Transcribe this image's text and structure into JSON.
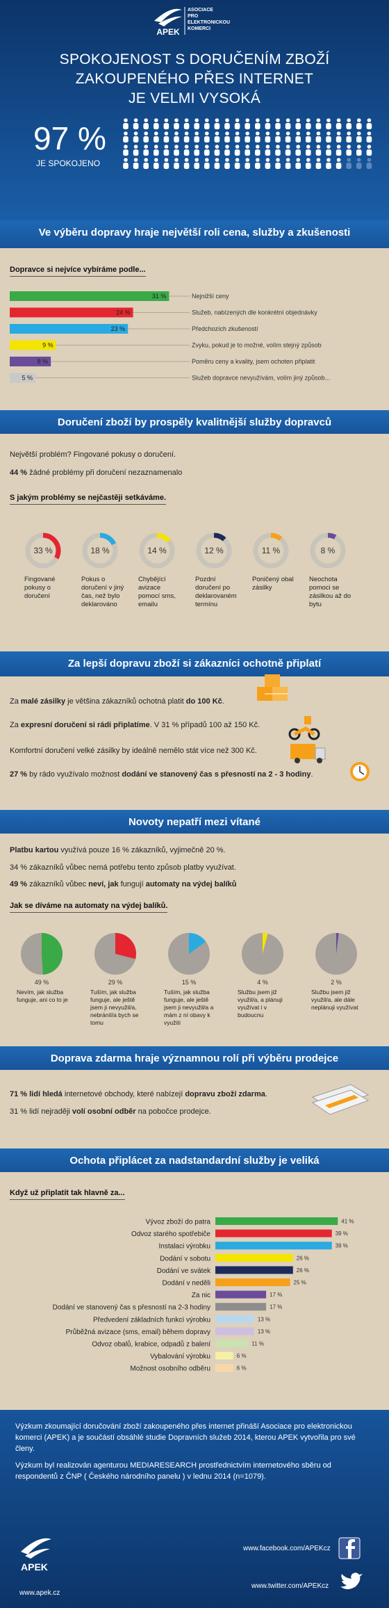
{
  "header": {
    "logo": "APEK",
    "org": [
      "ASOCIACE",
      "PRO",
      "ELEKTRONICKOU",
      "KOMERCI"
    ],
    "title": [
      "SPOKOJENOST S DORUČENÍM ZBOŽÍ",
      "ZAKOUPENÉHO PŘES INTERNET",
      "JE VELMI VYSOKÁ"
    ],
    "satisfied": {
      "value": 97,
      "label": "97 %",
      "caption": "JE SPOKOJENO"
    }
  },
  "carrier": {
    "heading": "Ve výběru dopravy hraje největší roli cena, služby a zkušenosti",
    "chart": {
      "type": "bar",
      "title": "Dopravce si nejvíce vybíráme podle...",
      "categories": [
        "Nejnižší ceny",
        "Služeb, nabízených dle konkrétní objednávky",
        "Předchozích zkušeností",
        "Zvyku, pokud je to možné, volím stejný způsob",
        "Poměru ceny a kvality, jsem ochoten připlatit",
        "Služeb dopravce nevyužívám, volím jiný způsob..."
      ],
      "values": [
        31,
        24,
        23,
        9,
        8,
        5
      ],
      "value_labels": [
        "31 %",
        "24 %",
        "23 %",
        "9 %",
        "8 %",
        "5 %"
      ],
      "colors": [
        "#3aaa47",
        "#e3262f",
        "#29aae1",
        "#f3e500",
        "#6b4c9a",
        "#c9c9c9"
      ],
      "xlim": [
        0,
        35
      ]
    }
  },
  "problems": {
    "heading": "Doručení zboží by prospěly kvalitnější služby dopravců",
    "lines": [
      [
        "Největší problém? Fingované pokusy o doručení."
      ],
      [
        "44 %",
        " žádné problémy při doručení nezaznamenalo"
      ]
    ],
    "chart": {
      "type": "donut",
      "title": "S jakým problémy se nejčastěji setkáváme.",
      "categories": [
        "Fingované pokusy o doručení",
        "Pokus o doručení v jiný čas, než bylo deklarováno",
        "Chybějící avizace pomocí sms, emailu",
        "Pozdní doručení po deklarovaném termínu",
        "Poničený obal zásilky",
        "Neochota pomoci se zásilkou až do bytu"
      ],
      "values": [
        33,
        18,
        14,
        12,
        11,
        8
      ],
      "value_labels": [
        "33 %",
        "18 %",
        "14 %",
        "12 %",
        "11 %",
        "8 %"
      ],
      "colors": [
        "#e3262f",
        "#29aae1",
        "#f3e500",
        "#1e2a5a",
        "#f6a01a",
        "#6b4c9a"
      ]
    }
  },
  "pay": {
    "heading": "Za lepší dopravu zboží si zákazníci ochotně připlatí",
    "lines": [
      [
        "Za ",
        "malé zásilky",
        " je většina zákazníků ochotná platit ",
        "do 100 Kč",
        "."
      ],
      [
        "Za ",
        "expresní doručení si rádi připlatíme",
        ". V 31 % případů 100 až 150 Kč."
      ],
      [
        "Komfortní doručení velké zásilky by ideálně nemělo stát více než 300 Kč."
      ],
      [
        "27 %",
        " by rádo využívalo možnost ",
        "dodání ve stanovený čas s přesností na 2 - 3 hodiny",
        "."
      ]
    ]
  },
  "novelties": {
    "heading": "Novoty nepatří mezi vítané",
    "lines": [
      [
        "Platbu kartou",
        " využívá pouze 16 % zákazníků, vyjimečně 20 %."
      ],
      [
        "34 % zákazníků vůbec nemá potřebu tento způsob platby využívat."
      ],
      [
        "49 %",
        " zákazníků vůbec ",
        "neví, jak",
        " fungují ",
        "automaty na výdej balíků"
      ]
    ],
    "chart": {
      "type": "pie",
      "title": "Jak se díváme na automaty na výdej balíků.",
      "categories": [
        "Nevím, jak služba funguje, ani co to je",
        "Tuším, jak služba funguje, ale ještě jsem ji nevyužil/a, nebráníl/a bych se tomu",
        "Tuším, jak služba funguje, ale ještě jsem ji nevyužil/a a mám z ní obavy k využití",
        "Službu jsem již využil/a, a plánuji využívat i v budoucnu",
        "Službu jsem již využil/a, ale dále neplánuji využívat"
      ],
      "values": [
        49,
        29,
        15,
        4,
        2
      ],
      "value_labels": [
        "49 %",
        "29 %",
        "15 %",
        "4 %",
        "2 %"
      ],
      "colors": [
        "#3aaa47",
        "#e3262f",
        "#29aae1",
        "#f3e500",
        "#6b4c9a"
      ]
    }
  },
  "free": {
    "heading": "Doprava zdarma hraje významnou rolí při výběru prodejce",
    "lines": [
      [
        "71 % lidí hledá",
        " internetové obchody, které nabízejí ",
        "dopravu zboží zdarma",
        "."
      ],
      [
        "31 % lidí  nejraději ",
        "volí osobní odběr",
        " na pobočce prodejce."
      ]
    ]
  },
  "extra": {
    "heading": "Ochota připlácet za nadstandardní služby je veliká",
    "chart": {
      "type": "bar",
      "title": "Když už připlatit tak hlavně za...",
      "categories": [
        "Vývoz zboží do patra",
        "Odvoz starého spotřebiče",
        "Instalaci výrobku",
        "Dodání v sobotu",
        "Dodání ve svátek",
        "Dodání v neděli",
        "Za nic",
        "Dodání ve stanovený čas s přesností na 2-3 hodiny",
        "Předvedení základních funkcí výrobku",
        "Průběžná avizace (sms, email) během dopravy",
        "Odvoz obalů, krabice, odpadů z balení",
        "Vybalování výrobku",
        "Možnost osobního odběru"
      ],
      "values": [
        41,
        39,
        39,
        26,
        26,
        25,
        17,
        17,
        13,
        13,
        11,
        6,
        6
      ],
      "value_labels": [
        "41 %",
        "39 %",
        "39 %",
        "26 %",
        "26 %",
        "25 %",
        "17 %",
        "17 %",
        "13 %",
        "13 %",
        "11 %",
        "6 %",
        "6 %"
      ],
      "colors": [
        "#3aaa47",
        "#e3262f",
        "#29aae1",
        "#f3e500",
        "#1e2a5a",
        "#f6a01a",
        "#6b4c9a",
        "#8d8d8d",
        "#b9d8ee",
        "#cdbfdf",
        "#c9e2b0",
        "#f6efa6",
        "#f9d8a8"
      ],
      "xlim": [
        0,
        50
      ]
    }
  },
  "footer": {
    "paragraphs": [
      "Výzkum zkoumající doručování zboží zakoupeného přes internet přináší Asociace pro elektronickou komerci (APEK) a je součástí obsáhlé studie Dopravních služeb 2014, kterou APEK vytvořila pro své členy.",
      "Výzkum byl realizován agenturou MEDIARESEARCH prostřednictvím internetového sběru od respondentů z ČNP ( Českého národního panelu ) v lednu 2014 (n=1079)."
    ],
    "logo": "APEK",
    "web": "www.apek.cz",
    "facebook": "www.facebook.com/APEKcz",
    "twitter": "www.twitter.com/APEKcz"
  }
}
